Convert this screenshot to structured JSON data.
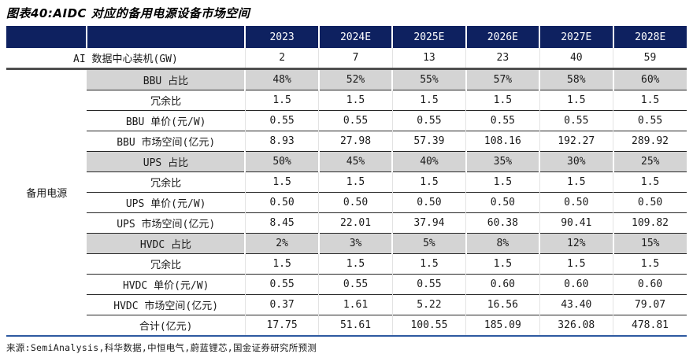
{
  "title": "图表40:AIDC 对应的备用电源设备市场空间",
  "source": "来源:SemiAnalysis,科华数据,中恒电气,蔚蓝锂芯,国金证券研究所预测",
  "colors": {
    "header_bg": "#0e2160",
    "header_text": "#ffffff",
    "shaded_row_bg": "#d4d4d4",
    "heavy_rule": "#4f4f4f",
    "row_rule": "#262626",
    "bottom_rule": "#2e5aa0"
  },
  "chart_data": {
    "type": "table",
    "title": "图表40:AIDC 对应的备用电源设备市场空间",
    "columns": [
      "2023",
      "2024E",
      "2025E",
      "2026E",
      "2027E",
      "2028E"
    ],
    "group_label": "备用电源",
    "rows": [
      {
        "id": "ai-capacity",
        "label": "AI 数据中心装机(GW)",
        "values": [
          "2",
          "7",
          "13",
          "23",
          "40",
          "59"
        ],
        "shaded": false
      },
      {
        "id": "bbu-share",
        "label": "BBU 占比",
        "values": [
          "48%",
          "52%",
          "55%",
          "57%",
          "58%",
          "60%"
        ],
        "shaded": true
      },
      {
        "id": "bbu-redundancy",
        "label": "冗余比",
        "values": [
          "1.5",
          "1.5",
          "1.5",
          "1.5",
          "1.5",
          "1.5"
        ],
        "shaded": false
      },
      {
        "id": "bbu-unit-price",
        "label": "BBU 单价(元/W)",
        "values": [
          "0.55",
          "0.55",
          "0.55",
          "0.55",
          "0.55",
          "0.55"
        ],
        "shaded": false
      },
      {
        "id": "bbu-market",
        "label": "BBU 市场空间(亿元)",
        "values": [
          "8.93",
          "27.98",
          "57.39",
          "108.16",
          "192.27",
          "289.92"
        ],
        "shaded": false
      },
      {
        "id": "ups-share",
        "label": "UPS 占比",
        "values": [
          "50%",
          "45%",
          "40%",
          "35%",
          "30%",
          "25%"
        ],
        "shaded": true
      },
      {
        "id": "ups-redundancy",
        "label": "冗余比",
        "values": [
          "1.5",
          "1.5",
          "1.5",
          "1.5",
          "1.5",
          "1.5"
        ],
        "shaded": false
      },
      {
        "id": "ups-unit-price",
        "label": "UPS 单价(元/W)",
        "values": [
          "0.50",
          "0.50",
          "0.50",
          "0.50",
          "0.50",
          "0.50"
        ],
        "shaded": false
      },
      {
        "id": "ups-market",
        "label": "UPS 市场空间(亿元)",
        "values": [
          "8.45",
          "22.01",
          "37.94",
          "60.38",
          "90.41",
          "109.82"
        ],
        "shaded": false
      },
      {
        "id": "hvdc-share",
        "label": "HVDC 占比",
        "values": [
          "2%",
          "3%",
          "5%",
          "8%",
          "12%",
          "15%"
        ],
        "shaded": true
      },
      {
        "id": "hvdc-redundancy",
        "label": "冗余比",
        "values": [
          "1.5",
          "1.5",
          "1.5",
          "1.5",
          "1.5",
          "1.5"
        ],
        "shaded": false
      },
      {
        "id": "hvdc-unit-price",
        "label": "HVDC 单价(元/W)",
        "values": [
          "0.55",
          "0.55",
          "0.55",
          "0.60",
          "0.60",
          "0.60"
        ],
        "shaded": false
      },
      {
        "id": "hvdc-market",
        "label": "HVDC 市场空间(亿元)",
        "values": [
          "0.37",
          "1.61",
          "5.22",
          "16.56",
          "43.40",
          "79.07"
        ],
        "shaded": false
      },
      {
        "id": "total",
        "label": "合计(亿元)",
        "values": [
          "17.75",
          "51.61",
          "100.55",
          "185.09",
          "326.08",
          "478.81"
        ],
        "shaded": false,
        "total": true
      }
    ]
  }
}
